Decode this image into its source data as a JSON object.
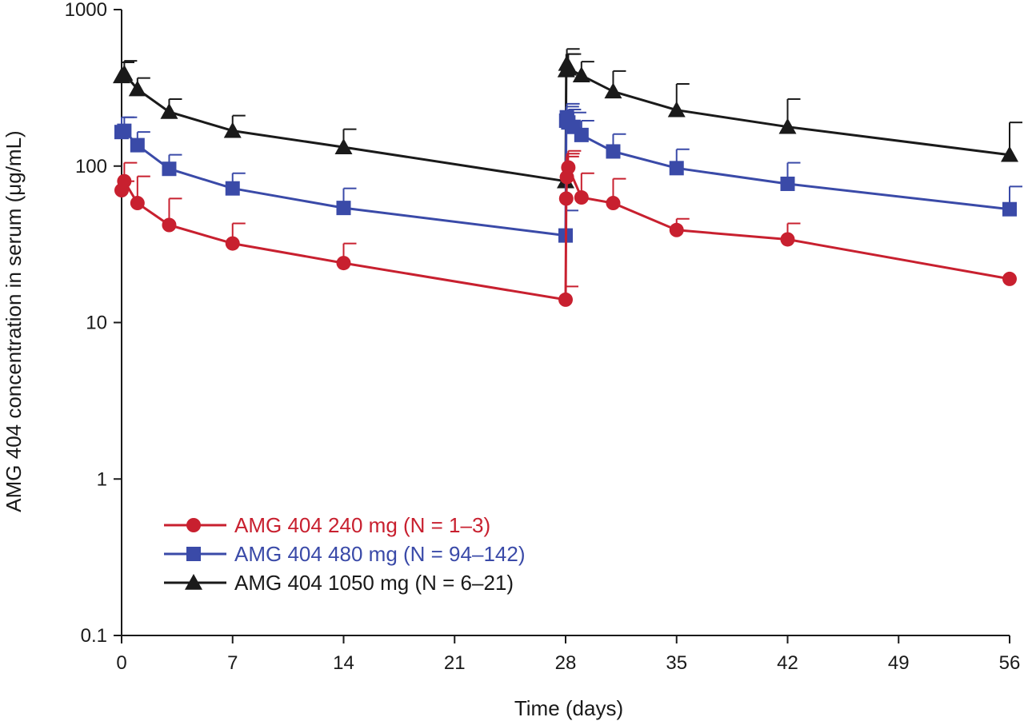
{
  "chart_data": {
    "type": "line",
    "title": "",
    "xlabel": "Time (days)",
    "ylabel": "AMG 404 concentration in serum (μg/mL)",
    "xlim": [
      0,
      56
    ],
    "ylim": [
      0.1,
      1000
    ],
    "yscale": "log",
    "x_ticks": [
      0,
      7,
      14,
      21,
      28,
      35,
      42,
      49,
      56
    ],
    "x_tick_labels": [
      "0",
      "7",
      "14",
      "21",
      "28",
      "35",
      "42",
      "49",
      "56"
    ],
    "y_ticks": [
      0.1,
      1,
      10,
      100,
      1000
    ],
    "y_tick_labels": [
      "0.1",
      "1",
      "10",
      "100",
      "1000"
    ],
    "grid": false,
    "legend_position": "bottom-left",
    "series": [
      {
        "name": "AMG 404 240 mg (N = 1–3)",
        "color": "#c8202f",
        "marker": "circle",
        "x": [
          0,
          0.17,
          1,
          3,
          7,
          14,
          28,
          28.04,
          28.08,
          28.17,
          29,
          31,
          35,
          42,
          56
        ],
        "y": [
          70,
          80,
          58,
          42,
          32,
          24,
          14,
          62,
          85,
          98,
          63,
          58,
          39,
          34,
          19
        ],
        "error_upper": [
          80,
          105,
          86,
          62,
          43,
          32,
          17,
          115,
          120,
          125,
          90,
          83,
          46,
          43,
          null
        ]
      },
      {
        "name": "AMG 404 480 mg (N = 94–142)",
        "color": "#3a4aa8",
        "marker": "square",
        "x": [
          0,
          0.17,
          1,
          3,
          7,
          14,
          28,
          28.04,
          28.08,
          28.17,
          28.5,
          29,
          31,
          35,
          42,
          56
        ],
        "y": [
          165,
          168,
          136,
          96,
          72,
          54,
          36,
          195,
          205,
          190,
          178,
          158,
          124,
          97,
          77,
          53
        ],
        "error_upper": [
          205,
          205,
          165,
          118,
          90,
          72,
          52,
          240,
          250,
          230,
          220,
          195,
          160,
          128,
          105,
          74
        ]
      },
      {
        "name": "AMG 404 1050 mg (N = 6–21)",
        "color": "#1a1a1a",
        "marker": "triangle",
        "x": [
          0,
          0.17,
          1,
          3,
          7,
          14,
          28,
          28.04,
          28.08,
          28.17,
          29,
          31,
          35,
          42,
          56
        ],
        "y": [
          375,
          390,
          310,
          222,
          168,
          132,
          80,
          410,
          450,
          420,
          380,
          300,
          228,
          178,
          118
        ],
        "error_upper": [
          460,
          470,
          365,
          268,
          210,
          172,
          null,
          520,
          560,
          520,
          465,
          405,
          335,
          268,
          190
        ]
      }
    ]
  }
}
